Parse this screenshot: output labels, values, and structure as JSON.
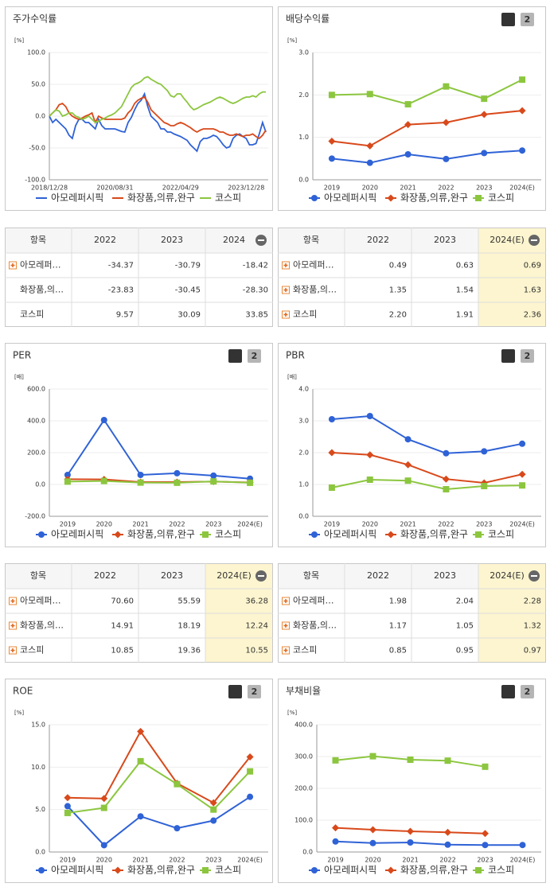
{
  "chart_data": [
    {
      "type": "line",
      "title": "주가수익률",
      "unit": "[%]",
      "markers": false,
      "grid": true,
      "categories": [
        "2018/12/28",
        null,
        null,
        null,
        null,
        null,
        null,
        null,
        null,
        null,
        null,
        null,
        null,
        null,
        null,
        null,
        null,
        null,
        null,
        null,
        "2020/08/31",
        null,
        null,
        null,
        null,
        null,
        null,
        null,
        null,
        null,
        null,
        null,
        null,
        null,
        null,
        null,
        null,
        null,
        null,
        null,
        "2022/04/29",
        null,
        null,
        null,
        null,
        null,
        null,
        null,
        null,
        null,
        null,
        null,
        null,
        null,
        null,
        null,
        null,
        null,
        null,
        null,
        "2023/12/28",
        null,
        null,
        null,
        null,
        null,
        null
      ],
      "ylim": [
        -100,
        100
      ],
      "yticks": [
        {
          "value": 100,
          "label": "100.0"
        },
        {
          "value": 50,
          "label": "50.0"
        },
        {
          "value": 0,
          "label": "0.0"
        },
        {
          "value": -50,
          "label": "-50.0"
        },
        {
          "value": -100,
          "label": "-100.0"
        }
      ],
      "series": [
        {
          "name": "아모레퍼시픽",
          "color": "#2f62d6",
          "values": [
            0,
            -10,
            -5,
            -10,
            -15,
            -20,
            -30,
            -35,
            -15,
            -5,
            -5,
            -10,
            -10,
            -15,
            -20,
            -5,
            -15,
            -20,
            -20,
            -20,
            -20,
            -22,
            -24,
            -25,
            -10,
            -2,
            10,
            20,
            25,
            35,
            15,
            0,
            -5,
            -10,
            -20,
            -20,
            -25,
            -25,
            -28,
            -30,
            -32,
            -35,
            -38,
            -45,
            -50,
            -55,
            -40,
            -35,
            -35,
            -33,
            -30,
            -32,
            -38,
            -45,
            -50,
            -48,
            -35,
            -30,
            -28,
            -32,
            -35,
            -45,
            -45,
            -43,
            -28,
            -10,
            -25
          ]
        },
        {
          "name": "화장품,의류,완구",
          "color": "#d8491b",
          "values": [
            0,
            5,
            10,
            18,
            20,
            15,
            5,
            0,
            -3,
            -5,
            -3,
            0,
            2,
            5,
            -10,
            0,
            -3,
            -5,
            -5,
            -5,
            -5,
            -5,
            -5,
            -3,
            5,
            10,
            20,
            25,
            28,
            30,
            22,
            10,
            5,
            0,
            -5,
            -10,
            -12,
            -15,
            -15,
            -12,
            -10,
            -12,
            -15,
            -18,
            -22,
            -25,
            -22,
            -20,
            -20,
            -20,
            -20,
            -22,
            -25,
            -25,
            -28,
            -30,
            -30,
            -28,
            -30,
            -32,
            -30,
            -30,
            -28,
            -32,
            -35,
            -30,
            -22
          ]
        },
        {
          "name": "코스피",
          "color": "#8cc63f",
          "values": [
            0,
            5,
            10,
            8,
            0,
            2,
            5,
            5,
            0,
            -2,
            -5,
            -3,
            0,
            -5,
            -10,
            -8,
            -5,
            -3,
            0,
            2,
            5,
            10,
            15,
            25,
            35,
            45,
            50,
            52,
            55,
            60,
            62,
            58,
            55,
            52,
            50,
            45,
            40,
            32,
            30,
            35,
            35,
            28,
            22,
            15,
            10,
            12,
            15,
            18,
            20,
            22,
            25,
            28,
            30,
            28,
            25,
            22,
            20,
            22,
            25,
            28,
            30,
            30,
            32,
            30,
            35,
            38,
            38
          ]
        }
      ]
    },
    {
      "type": "line",
      "title": "배당수익률",
      "unit": "[%]",
      "markers": true,
      "grid": true,
      "buttons": [
        "1",
        "2"
      ],
      "categories": [
        "2019",
        "2020",
        "2021",
        "2022",
        "2023",
        "2024(E)"
      ],
      "ylim": [
        0,
        3
      ],
      "yticks": [
        {
          "value": 0,
          "label": "0.0"
        },
        {
          "value": 1,
          "label": "1.0"
        },
        {
          "value": 2,
          "label": "2.0"
        },
        {
          "value": 3,
          "label": "3.0"
        }
      ],
      "series": [
        {
          "name": "아모레퍼시픽",
          "color": "#2f62d6",
          "values": [
            0.5,
            0.4,
            0.6,
            0.49,
            0.63,
            0.69
          ]
        },
        {
          "name": "화장품,의류,완구",
          "color": "#d8491b",
          "values": [
            0.91,
            0.8,
            1.3,
            1.35,
            1.54,
            1.63
          ]
        },
        {
          "name": "코스피",
          "color": "#8cc63f",
          "values": [
            2.0,
            2.02,
            1.78,
            2.2,
            1.91,
            2.36
          ]
        }
      ]
    },
    {
      "type": "line",
      "title": "PER",
      "unit": "[배]",
      "markers": true,
      "grid": true,
      "buttons": [
        "1",
        "2"
      ],
      "categories": [
        "2019",
        "2020",
        "2021",
        "2022",
        "2023",
        "2024(E)"
      ],
      "ylim": [
        -200,
        600
      ],
      "yticks": [
        {
          "value": -200,
          "label": "-200.0"
        },
        {
          "value": 0,
          "label": "0.0"
        },
        {
          "value": 200,
          "label": "200.0"
        },
        {
          "value": 400,
          "label": "400.0"
        },
        {
          "value": 600,
          "label": "600.0"
        }
      ],
      "series": [
        {
          "name": "아모레퍼시픽",
          "color": "#2f62d6",
          "values": [
            60,
            405,
            60,
            70.6,
            55.59,
            36.28
          ]
        },
        {
          "name": "화장품,의류,완구",
          "color": "#d8491b",
          "values": [
            33,
            32,
            15,
            14.91,
            18.19,
            12.24
          ]
        },
        {
          "name": "코스피",
          "color": "#8cc63f",
          "values": [
            18,
            22,
            12,
            10.85,
            19.36,
            10.55
          ]
        }
      ]
    },
    {
      "type": "line",
      "title": "PBR",
      "unit": "[배]",
      "markers": true,
      "grid": true,
      "buttons": [
        "1",
        "2"
      ],
      "categories": [
        "2019",
        "2020",
        "2021",
        "2022",
        "2023",
        "2024(E)"
      ],
      "ylim": [
        0,
        4
      ],
      "yticks": [
        {
          "value": 0,
          "label": "0.0"
        },
        {
          "value": 1,
          "label": "1.0"
        },
        {
          "value": 2,
          "label": "2.0"
        },
        {
          "value": 3,
          "label": "3.0"
        },
        {
          "value": 4,
          "label": "4.0"
        }
      ],
      "series": [
        {
          "name": "아모레퍼시픽",
          "color": "#2f62d6",
          "values": [
            3.05,
            3.15,
            2.42,
            1.98,
            2.04,
            2.28
          ]
        },
        {
          "name": "화장품,의류,완구",
          "color": "#d8491b",
          "values": [
            2.0,
            1.93,
            1.62,
            1.17,
            1.05,
            1.32
          ]
        },
        {
          "name": "코스피",
          "color": "#8cc63f",
          "values": [
            0.9,
            1.15,
            1.12,
            0.85,
            0.95,
            0.97
          ]
        }
      ]
    },
    {
      "type": "line",
      "title": "ROE",
      "unit": "[%]",
      "markers": true,
      "grid": true,
      "buttons": [
        "1",
        "2"
      ],
      "categories": [
        "2019",
        "2020",
        "2021",
        "2022",
        "2023",
        "2024(E)"
      ],
      "ylim": [
        0,
        15
      ],
      "yticks": [
        {
          "value": 0,
          "label": "0.0"
        },
        {
          "value": 5,
          "label": "5.0"
        },
        {
          "value": 10,
          "label": "10.0"
        },
        {
          "value": 15,
          "label": "15.0"
        }
      ],
      "series": [
        {
          "name": "아모레퍼시픽",
          "color": "#2f62d6",
          "values": [
            5.4,
            0.8,
            4.2,
            2.8,
            3.7,
            6.5
          ]
        },
        {
          "name": "화장품,의류,완구",
          "color": "#d8491b",
          "values": [
            6.4,
            6.3,
            14.2,
            8.1,
            5.8,
            11.2
          ]
        },
        {
          "name": "코스피",
          "color": "#8cc63f",
          "values": [
            4.6,
            5.2,
            10.7,
            8.0,
            5.0,
            9.5
          ]
        }
      ]
    },
    {
      "type": "line",
      "title": "부채비율",
      "unit": "[%]",
      "markers": true,
      "grid": true,
      "buttons": [
        "1",
        "2"
      ],
      "categories": [
        "2019",
        "2020",
        "2021",
        "2022",
        "2023",
        "2024(E)"
      ],
      "ylim": [
        0,
        400
      ],
      "yticks": [
        {
          "value": 0,
          "label": "0.0"
        },
        {
          "value": 100,
          "label": "100.0"
        },
        {
          "value": 200,
          "label": "200.0"
        },
        {
          "value": 300,
          "label": "300.0"
        },
        {
          "value": 400,
          "label": "400.0"
        }
      ],
      "series": [
        {
          "name": "아모레퍼시픽",
          "color": "#2f62d6",
          "values": [
            33,
            28,
            30,
            23,
            22,
            22
          ]
        },
        {
          "name": "화장품,의류,완구",
          "color": "#d8491b",
          "values": [
            76,
            70,
            65,
            62,
            58,
            null
          ]
        },
        {
          "name": "코스피",
          "color": "#8cc63f",
          "values": [
            288,
            301,
            290,
            287,
            268,
            null
          ]
        }
      ]
    }
  ],
  "tables": [
    {
      "columns": [
        "항목",
        "2022",
        "2023",
        "2024"
      ],
      "highlight_last": false,
      "rows": [
        [
          "아모레퍼…",
          "-34.37",
          "-30.79",
          "-18.42"
        ],
        [
          "화장품,의…",
          "-23.83",
          "-30.45",
          "-28.30"
        ],
        [
          "코스피",
          "9.57",
          "30.09",
          "33.85"
        ]
      ],
      "plus": [
        true,
        false,
        false
      ]
    },
    {
      "columns": [
        "항목",
        "2022",
        "2023",
        "2024(E)"
      ],
      "highlight_last": true,
      "rows": [
        [
          "아모레퍼…",
          "0.49",
          "0.63",
          "0.69"
        ],
        [
          "화장품,의…",
          "1.35",
          "1.54",
          "1.63"
        ],
        [
          "코스피",
          "2.20",
          "1.91",
          "2.36"
        ]
      ],
      "plus": [
        true,
        true,
        true
      ]
    },
    {
      "columns": [
        "항목",
        "2022",
        "2023",
        "2024(E)"
      ],
      "highlight_last": true,
      "rows": [
        [
          "아모레퍼…",
          "70.60",
          "55.59",
          "36.28"
        ],
        [
          "화장품,의…",
          "14.91",
          "18.19",
          "12.24"
        ],
        [
          "코스피",
          "10.85",
          "19.36",
          "10.55"
        ]
      ],
      "plus": [
        true,
        true,
        true
      ]
    },
    {
      "columns": [
        "항목",
        "2022",
        "2023",
        "2024(E)"
      ],
      "highlight_last": true,
      "rows": [
        [
          "아모레퍼…",
          "1.98",
          "2.04",
          "2.28"
        ],
        [
          "화장품,의…",
          "1.17",
          "1.05",
          "1.32"
        ],
        [
          "코스피",
          "0.85",
          "0.95",
          "0.97"
        ]
      ],
      "plus": [
        true,
        true,
        true
      ]
    }
  ]
}
